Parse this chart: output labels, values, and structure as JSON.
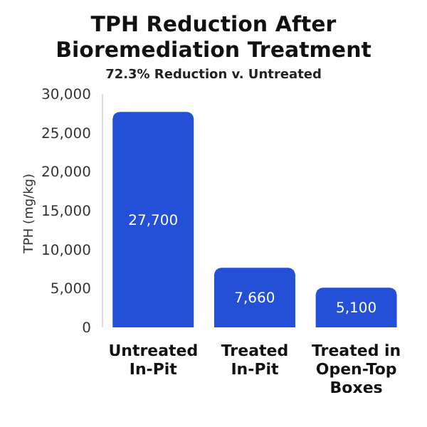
{
  "chart_data": {
    "type": "bar",
    "title": "TPH Reduction After Bioremediation Treatment",
    "subtitle": "72.3% Reduction v. Untreated",
    "ylabel": "TPH (mg/kg)",
    "categories": [
      "Untreated In-Pit",
      "Treated In-Pit",
      "Treated in Open-Top Boxes"
    ],
    "values": [
      27700,
      7660,
      5100
    ],
    "color": "#2450d8",
    "value_labels": [
      "27,700",
      "7,660",
      "5,100"
    ],
    "ylim": [
      0,
      30000
    ],
    "yticks": [
      0,
      {
        "value": 5000,
        "label": "5,000"
      },
      {
        "value": 10000,
        "label": "10,000"
      },
      {
        "value": 15000,
        "label": "15,000"
      },
      {
        "value": 20000,
        "label": "20,000"
      },
      {
        "value": 25000,
        "label": "25,000"
      },
      {
        "value": 30000,
        "label": "30,000"
      }
    ],
    "grid": false
  }
}
